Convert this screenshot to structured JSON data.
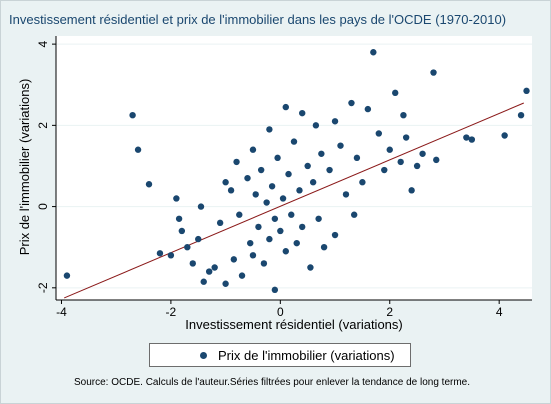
{
  "chart_data": {
    "type": "scatter",
    "title": "Investissement résidentiel et prix de l'immobilier dans les pays de l'OCDE (1970-2010)",
    "xlabel": "Investissement résidentiel (variations)",
    "ylabel": "Prix de l'immobilier (variations)",
    "xlim": [
      -4.1,
      4.6
    ],
    "ylim": [
      -2.3,
      4.2
    ],
    "xticks": [
      -4,
      -2,
      0,
      2,
      4
    ],
    "yticks": [
      -2,
      0,
      2,
      4
    ],
    "xtick_labels": [
      "-4",
      "-2",
      "0",
      "2",
      "4"
    ],
    "ytick_labels": [
      "-2",
      "0",
      "2",
      "4"
    ],
    "grid": "horizontal",
    "legend_position": "bottom",
    "series": [
      {
        "name": "Prix de l'immobilier (variations)",
        "color": "#1a476f",
        "points": [
          [
            -3.9,
            -1.7
          ],
          [
            -2.7,
            2.25
          ],
          [
            -2.6,
            1.4
          ],
          [
            -2.4,
            0.55
          ],
          [
            -2.2,
            -1.15
          ],
          [
            -2.0,
            -1.2
          ],
          [
            -1.9,
            0.2
          ],
          [
            -1.85,
            -0.3
          ],
          [
            -1.8,
            -0.6
          ],
          [
            -1.7,
            -1.0
          ],
          [
            -1.6,
            -1.4
          ],
          [
            -1.5,
            -0.8
          ],
          [
            -1.45,
            0.0
          ],
          [
            -1.4,
            -1.85
          ],
          [
            -1.3,
            -1.6
          ],
          [
            -1.2,
            -1.5
          ],
          [
            -1.1,
            -0.4
          ],
          [
            -1.0,
            0.6
          ],
          [
            -1.0,
            -1.9
          ],
          [
            -0.9,
            0.4
          ],
          [
            -0.85,
            -1.3
          ],
          [
            -0.8,
            1.1
          ],
          [
            -0.75,
            -0.2
          ],
          [
            -0.7,
            -1.7
          ],
          [
            -0.6,
            0.7
          ],
          [
            -0.55,
            -0.9
          ],
          [
            -0.5,
            1.4
          ],
          [
            -0.5,
            -1.2
          ],
          [
            -0.45,
            0.3
          ],
          [
            -0.4,
            -0.5
          ],
          [
            -0.35,
            0.9
          ],
          [
            -0.3,
            -1.4
          ],
          [
            -0.25,
            0.1
          ],
          [
            -0.2,
            1.9
          ],
          [
            -0.2,
            -0.8
          ],
          [
            -0.15,
            0.5
          ],
          [
            -0.1,
            -0.3
          ],
          [
            -0.1,
            -2.05
          ],
          [
            -0.05,
            1.2
          ],
          [
            0.0,
            -0.6
          ],
          [
            0.05,
            0.2
          ],
          [
            0.1,
            2.45
          ],
          [
            0.1,
            -1.1
          ],
          [
            0.15,
            0.8
          ],
          [
            0.2,
            -0.2
          ],
          [
            0.25,
            1.6
          ],
          [
            0.3,
            -0.9
          ],
          [
            0.35,
            0.4
          ],
          [
            0.4,
            2.3
          ],
          [
            0.4,
            -0.5
          ],
          [
            0.5,
            1.0
          ],
          [
            0.55,
            -1.5
          ],
          [
            0.6,
            0.6
          ],
          [
            0.65,
            2.0
          ],
          [
            0.7,
            -0.3
          ],
          [
            0.75,
            1.3
          ],
          [
            0.8,
            -1.0
          ],
          [
            0.9,
            0.9
          ],
          [
            1.0,
            2.1
          ],
          [
            1.0,
            -0.7
          ],
          [
            1.1,
            1.5
          ],
          [
            1.2,
            0.3
          ],
          [
            1.3,
            2.55
          ],
          [
            1.35,
            -0.2
          ],
          [
            1.4,
            1.2
          ],
          [
            1.5,
            0.6
          ],
          [
            1.6,
            2.4
          ],
          [
            1.7,
            3.8
          ],
          [
            1.8,
            1.8
          ],
          [
            1.9,
            0.9
          ],
          [
            2.0,
            1.4
          ],
          [
            2.1,
            2.8
          ],
          [
            2.2,
            1.1
          ],
          [
            2.25,
            2.25
          ],
          [
            2.3,
            1.7
          ],
          [
            2.4,
            0.4
          ],
          [
            2.5,
            1.0
          ],
          [
            2.6,
            1.3
          ],
          [
            2.8,
            3.3
          ],
          [
            2.85,
            1.15
          ],
          [
            3.4,
            1.7
          ],
          [
            3.5,
            1.65
          ],
          [
            4.1,
            1.75
          ],
          [
            4.4,
            2.25
          ],
          [
            4.5,
            2.85
          ]
        ]
      }
    ],
    "fit_line": {
      "x": [
        -3.95,
        4.45
      ],
      "y": [
        -2.25,
        2.55
      ],
      "color": "#8b1a1a"
    }
  },
  "source_note": "Source: OCDE. Calculs de l'auteur.Séries filtrées pour enlever la tendance de long terme."
}
